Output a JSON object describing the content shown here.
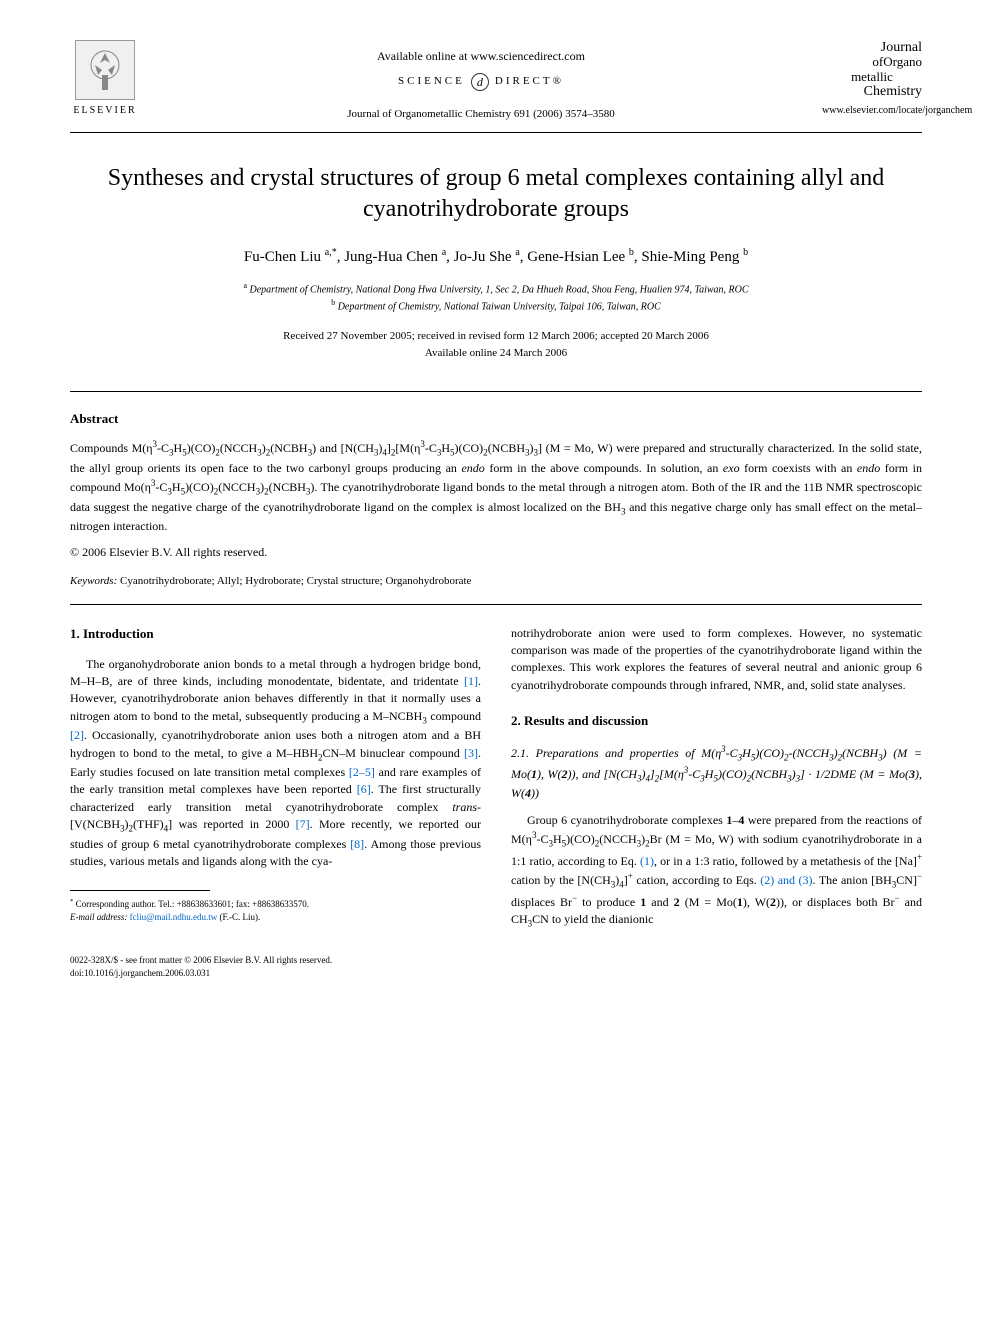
{
  "header": {
    "elsevier_label": "ELSEVIER",
    "available_online": "Available online at www.sciencedirect.com",
    "science_direct_left": "SCIENCE",
    "science_direct_right": "DIRECT®",
    "journal_ref": "Journal of Organometallic Chemistry 691 (2006) 3574–3580",
    "journal_logo_line1": "Journal",
    "journal_logo_line2": "ofOrgano",
    "journal_logo_line3": "metallic",
    "journal_logo_line4": "Chemistry",
    "journal_url": "www.elsevier.com/locate/jorganchem"
  },
  "article": {
    "title": "Syntheses and crystal structures of group 6 metal complexes containing allyl and cyanotrihydroborate groups",
    "authors_html": "Fu-Chen Liu <sup>a,*</sup>, Jung-Hua Chen <sup>a</sup>, Jo-Ju She <sup>a</sup>, Gene-Hsian Lee <sup>b</sup>, Shie-Ming Peng <sup>b</sup>",
    "affiliation_a": "Department of Chemistry, National Dong Hwa University, 1, Sec 2, Da Hhueh Road, Shou Feng, Hualien 974, Taiwan, ROC",
    "affiliation_b": "Department of Chemistry, National Taiwan University, Taipai 106, Taiwan, ROC",
    "dates_line1": "Received 27 November 2005; received in revised form 12 March 2006; accepted 20 March 2006",
    "dates_line2": "Available online 24 March 2006"
  },
  "abstract": {
    "heading": "Abstract",
    "text_html": "Compounds M(η<sup>3</sup>-C<sub>3</sub>H<sub>5</sub>)(CO)<sub>2</sub>(NCCH<sub>3</sub>)<sub>2</sub>(NCBH<sub>3</sub>) and [N(CH<sub>3</sub>)<sub>4</sub>]<sub>2</sub>[M(η<sup>3</sup>-C<sub>3</sub>H<sub>5</sub>)(CO)<sub>2</sub>(NCBH<sub>3</sub>)<sub>3</sub>] (M = Mo, W) were prepared and structurally characterized. In the solid state, the allyl group orients its open face to the two carbonyl groups producing an <i>endo</i> form in the above compounds. In solution, an <i>exo</i> form coexists with an <i>endo</i> form in compound Mo(η<sup>3</sup>-C<sub>3</sub>H<sub>5</sub>)(CO)<sub>2</sub>(NCCH<sub>3</sub>)<sub>2</sub>(NCBH<sub>3</sub>). The cyanotrihydroborate ligand bonds to the metal through a nitrogen atom. Both of the IR and the 11B NMR spectroscopic data suggest the negative charge of the cyanotrihydroborate ligand on the complex is almost localized on the BH<sub>3</sub> and this negative charge only has small effect on the metal–nitrogen interaction.",
    "copyright": "© 2006 Elsevier B.V. All rights reserved.",
    "keywords_label": "Keywords:",
    "keywords_text": " Cyanotrihydroborate; Allyl; Hydroborate; Crystal structure; Organohydroborate"
  },
  "body": {
    "intro_heading": "1. Introduction",
    "intro_text_html": "The organohydroborate anion bonds to a metal through a hydrogen bridge bond, M–H–B, are of three kinds, including monodentate, bidentate, and tridentate <span class='ref'>[1]</span>. However, cyanotrihydroborate anion behaves differently in that it normally uses a nitrogen atom to bond to the metal, subsequently producing a M–NCBH<sub>3</sub> compound <span class='ref'>[2]</span>. Occasionally, cyanotrihydroborate anion uses both a nitrogen atom and a BH hydrogen to bond to the metal, to give a M–HBH<sub>2</sub>CN–M binuclear compound <span class='ref'>[3]</span>. Early studies focused on late transition metal complexes <span class='ref'>[2–5]</span> and rare examples of the early transition metal complexes have been reported <span class='ref'>[6]</span>. The first structurally characterized early transition metal cyanotrihydroborate complex <i>trans</i>-[V(NCBH<sub>3</sub>)<sub>2</sub>(THF)<sub>4</sub>] was reported in 2000 <span class='ref'>[7]</span>. More recently, we reported our studies of group 6 metal cyanotrihydroborate complexes <span class='ref'>[8]</span>. Among those previous studies, various metals and ligands along with the cya-",
    "col2_continuation_html": "notrihydroborate anion were used to form complexes. However, no systematic comparison was made of the properties of the cyanotrihydroborate ligand within the complexes. This work explores the features of several neutral and anionic group 6 cyanotrihydroborate compounds through infrared, NMR, and, solid state analyses.",
    "results_heading": "2. Results and discussion",
    "subsection_heading_html": "2.1. Preparations and properties of M(η<sup>3</sup>-C<sub>3</sub>H<sub>5</sub>)(CO)<sub>2</sub>-(NCCH<sub>3</sub>)<sub>2</sub>(NCBH<sub>3</sub>) (M = Mo(<b>1</b>), W(<b>2</b>)), and [N(CH<sub>3</sub>)<sub>4</sub>]<sub>2</sub>[M(η<sup>3</sup>-C<sub>3</sub>H<sub>5</sub>)(CO)<sub>2</sub>(NCBH<sub>3</sub>)<sub>3</sub>] · 1/2DME (M = Mo(<b>3</b>), W(<b>4</b>))",
    "results_text_html": "Group 6 cyanotrihydroborate complexes <b>1</b>–<b>4</b> were prepared from the reactions of M(η<sup>3</sup>-C<sub>3</sub>H<sub>5</sub>)(CO)<sub>2</sub>(NCCH<sub>3</sub>)<sub>2</sub>Br (M = Mo, W) with sodium cyanotrihydroborate in a 1:1 ratio, according to Eq. <span class='ref'>(1)</span>, or in a 1:3 ratio, followed by a metathesis of the [Na]<sup>+</sup> cation by the [N(CH<sub>3</sub>)<sub>4</sub>]<sup>+</sup> cation, according to Eqs. <span class='ref'>(2) and (3)</span>. The anion [BH<sub>3</sub>CN]<sup>−</sup> displaces Br<sup>−</sup> to produce <b>1</b> and <b>2</b> (M = Mo(<b>1</b>), W(<b>2</b>)), or displaces both Br<sup>−</sup> and CH<sub>3</sub>CN to yield the dianionic"
  },
  "footnote": {
    "corresponding": "Corresponding author. Tel.: +88638633601; fax: +88638633570.",
    "email_label": "E-mail address:",
    "email_value": " fcliu@mail.ndhu.edu.tw",
    "email_person": " (F.-C. Liu)."
  },
  "footer": {
    "issn": "0022-328X/$ - see front matter © 2006 Elsevier B.V. All rights reserved.",
    "doi": "doi:10.1016/j.jorganchem.2006.03.031"
  },
  "colors": {
    "text": "#000000",
    "background": "#ffffff",
    "link": "#0066cc"
  }
}
